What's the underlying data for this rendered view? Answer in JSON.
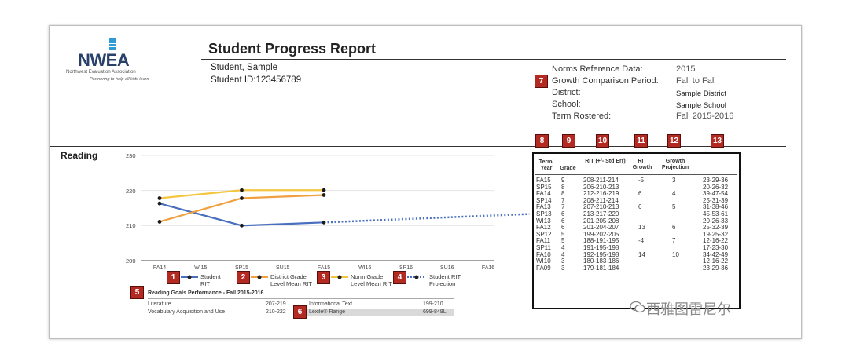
{
  "logo": {
    "word": "NWEA",
    "org": "Northwest Evaluation Association",
    "tagline": "Partnering to help all kids learn",
    "brand_color": "#2d9bd6"
  },
  "header": {
    "title": "Student Progress Report",
    "student_name": "Student, Sample",
    "student_id": "Student ID:123456789"
  },
  "norms": [
    {
      "label": "Norms Reference Data:",
      "value": "2015"
    },
    {
      "label": "Growth Comparison Period:",
      "value": "Fall to Fall"
    },
    {
      "label": "District:",
      "value": "Sample District"
    },
    {
      "label": "School:",
      "value": "Sample School"
    },
    {
      "label": "Term Rostered:",
      "value": "Fall 2015-2016"
    }
  ],
  "badges": [
    "1",
    "2",
    "3",
    "4",
    "5",
    "6",
    "7",
    "8",
    "9",
    "10",
    "11",
    "12",
    "13"
  ],
  "section": {
    "title": "Reading"
  },
  "chart_data": {
    "type": "line",
    "categories": [
      "FA14",
      "WI15",
      "SP15",
      "SU15",
      "FA15",
      "WI16",
      "SP16",
      "SU16",
      "FA16"
    ],
    "ylim": [
      200,
      230
    ],
    "yticks": [
      "230",
      "220",
      "210",
      "200"
    ],
    "series": [
      {
        "name": "Student RIT",
        "color": "#4a6fbf",
        "points": [
          [
            0,
            216.3
          ],
          [
            2,
            210
          ],
          [
            4,
            210.9
          ]
        ]
      },
      {
        "name": "District Grade Level Mean RIT",
        "color": "#f0a040",
        "points": [
          [
            0,
            211.1
          ],
          [
            2,
            217.8
          ],
          [
            4,
            218.7
          ]
        ]
      },
      {
        "name": "Norm Grade Level Mean RIT",
        "color": "#f4c640",
        "points": [
          [
            0,
            217.8
          ],
          [
            2,
            220.1
          ],
          [
            4,
            220.1
          ]
        ]
      },
      {
        "name": "Student RIT Projection",
        "color": "#4a6fbf",
        "dashed": true,
        "points": [
          [
            4,
            210.9
          ],
          [
            9,
            213.3
          ]
        ]
      }
    ]
  },
  "legend": [
    {
      "badge": "1",
      "line1": "Student",
      "line2": "RIT"
    },
    {
      "badge": "2",
      "line1": "District Grade",
      "line2": "Level Mean RIT"
    },
    {
      "badge": "3",
      "line1": "Norm Grade",
      "line2": "Level Mean RIT"
    },
    {
      "badge": "4",
      "line1": "Student RIT",
      "line2": "Projection"
    }
  ],
  "reading_goals": {
    "title": "Reading Goals Performance - Fall 2015-2016",
    "rows": [
      {
        "left_label": "Literature",
        "left_value": "207-219",
        "right_label": "Informational Text",
        "right_value": "199-210"
      },
      {
        "left_label": "Vocabulary Acquisition and Use",
        "left_value": "210-222",
        "right_label": "Lexile® Range",
        "right_value": "699-849L"
      }
    ]
  },
  "table": {
    "headers": [
      "Term/ Year",
      "Grade",
      "RIT (+/- Std Err)",
      "RIT Growth",
      "Growth Projection",
      ""
    ],
    "rows": [
      [
        "FA15",
        "9",
        "208-211-214",
        "-5",
        "3",
        "23-29-36"
      ],
      [
        "SP15",
        "8",
        "206-210-213",
        "",
        "",
        "20-26-32"
      ],
      [
        "FA14",
        "8",
        "212-216-219",
        "6",
        "4",
        "39-47-54"
      ],
      [
        "SP14",
        "7",
        "208-211-214",
        "",
        "",
        "25-31-39"
      ],
      [
        "FA13",
        "7",
        "207-210-213",
        "6",
        "5",
        "31-38-46"
      ],
      [
        "SP13",
        "6",
        "213-217-220",
        "",
        "",
        "45-53-61"
      ],
      [
        "WI13",
        "6",
        "201-205-208",
        "",
        "",
        "20-26-33"
      ],
      [
        "FA12",
        "6",
        "201-204-207",
        "13",
        "6",
        "25-32-39"
      ],
      [
        "SP12",
        "5",
        "199-202-205",
        "",
        "",
        "19-25-32"
      ],
      [
        "FA11",
        "5",
        "188-191-195",
        "-4",
        "7",
        "12-16-22"
      ],
      [
        "SP11",
        "4",
        "191-195-198",
        "",
        "",
        "17-23-30"
      ],
      [
        "FA10",
        "4",
        "192-195-198",
        "14",
        "10",
        "34-42-49"
      ],
      [
        "WI10",
        "3",
        "180-183-186",
        "",
        "",
        "12-16-22"
      ],
      [
        "FA09",
        "3",
        "179-181-184",
        "",
        "",
        "23-29-36"
      ]
    ]
  },
  "watermark": "西雅图雷尼尔"
}
